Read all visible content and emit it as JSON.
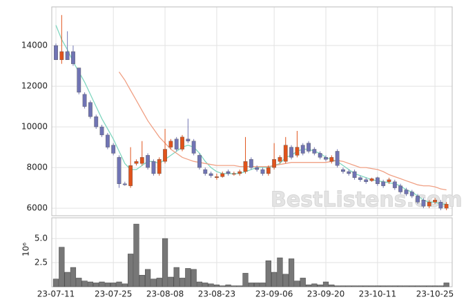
{
  "chart_data": [
    {
      "type": "candlestick",
      "up_color": "#e0531b",
      "down_color": "#7074b4",
      "open": [
        14000,
        13300,
        13700,
        13700,
        12900,
        11600,
        11200,
        10500,
        10000,
        9600,
        9100,
        8500,
        7200,
        7100,
        8200,
        8200,
        8600,
        8300,
        7700,
        8300,
        9000,
        9400,
        8900,
        9400,
        9300,
        8600,
        7900,
        7700,
        7500,
        7550,
        7800,
        7700,
        7700,
        7800,
        8400,
        8000,
        7900,
        7700,
        8000,
        8300,
        8300,
        9000,
        8600,
        9100,
        9200,
        8900,
        8700,
        8500,
        8300,
        8800,
        7900,
        7800,
        7800,
        7500,
        7400,
        7350,
        7500,
        7300,
        7300,
        7300,
        7100,
        6900,
        6800,
        6600,
        6400,
        6100,
        6300,
        6300,
        6000
      ],
      "high": [
        14100,
        15500,
        14700,
        14000,
        12900,
        11700,
        11300,
        10600,
        10100,
        9700,
        9200,
        8600,
        7300,
        9000,
        8400,
        9300,
        8700,
        8400,
        8500,
        9900,
        9400,
        9500,
        9600,
        10400,
        9400,
        8700,
        8000,
        7800,
        7700,
        7800,
        7900,
        7800,
        7900,
        9500,
        8500,
        8100,
        8000,
        8100,
        9200,
        8600,
        9500,
        9100,
        9800,
        9200,
        9300,
        9000,
        8800,
        8600,
        8600,
        8900,
        8000,
        7900,
        7900,
        7600,
        7500,
        7500,
        7550,
        7400,
        7500,
        7400,
        7200,
        7000,
        6900,
        6700,
        6500,
        6400,
        6500,
        6400,
        6300
      ],
      "low": [
        13300,
        13100,
        13300,
        13000,
        11600,
        10900,
        10400,
        9900,
        9500,
        8900,
        8600,
        7000,
        7100,
        7000,
        8100,
        8100,
        7900,
        7600,
        7600,
        8200,
        8900,
        8800,
        8800,
        9200,
        8600,
        7900,
        7600,
        7500,
        7400,
        7500,
        7600,
        7600,
        7600,
        7700,
        7900,
        7800,
        7600,
        7600,
        7900,
        8200,
        8200,
        8400,
        8500,
        8600,
        8700,
        8600,
        8400,
        8300,
        8200,
        8000,
        7700,
        7600,
        7400,
        7300,
        7200,
        7300,
        7100,
        7000,
        7200,
        6900,
        6700,
        6600,
        6500,
        6200,
        6000,
        6000,
        6200,
        5900,
        5900
      ],
      "close": [
        13300,
        13700,
        13300,
        13100,
        11700,
        11000,
        10500,
        10000,
        9600,
        9000,
        8700,
        7200,
        7150,
        8100,
        8300,
        8500,
        8000,
        7700,
        8400,
        8900,
        9300,
        8900,
        9500,
        9300,
        8700,
        8000,
        7700,
        7600,
        7550,
        7700,
        7700,
        7700,
        7800,
        8300,
        8000,
        7900,
        7700,
        8000,
        8400,
        8500,
        9100,
        8500,
        9000,
        8700,
        8800,
        8700,
        8500,
        8400,
        8500,
        8100,
        7800,
        7700,
        7500,
        7400,
        7300,
        7450,
        7200,
        7100,
        7400,
        7000,
        6800,
        6700,
        6600,
        6300,
        6100,
        6300,
        6400,
        6000,
        6200
      ],
      "series": [
        {
          "color": "#7fd6bf",
          "values": [
            15000,
            14300,
            13800,
            13200,
            12700,
            12200,
            11600,
            11000,
            10400,
            9900,
            9400,
            8800,
            8200,
            7900,
            7900,
            8100,
            8300,
            8300,
            8200,
            8400,
            8600,
            8800,
            9000,
            9100,
            9000,
            8700,
            8300,
            8000,
            7800,
            7700,
            7700,
            7700,
            7700,
            7800,
            7900,
            8000,
            8000,
            8000,
            8100,
            8200,
            8500,
            8600,
            8800,
            8900,
            8900,
            8800,
            8700,
            8500,
            8400,
            8300,
            8100,
            7900,
            7700,
            7600,
            7500,
            7400,
            7350,
            7300,
            7250,
            7200,
            7100,
            6900,
            6800,
            6600,
            6400,
            6300,
            6300,
            6200,
            6200
          ]
        },
        {
          "color": "#f0a084",
          "values": [
            null,
            null,
            null,
            null,
            null,
            null,
            null,
            null,
            null,
            null,
            null,
            12700,
            12300,
            11800,
            11300,
            10800,
            10300,
            9900,
            9500,
            9200,
            8900,
            8700,
            8500,
            8400,
            8300,
            8250,
            8200,
            8150,
            8100,
            8100,
            8100,
            8100,
            8050,
            8050,
            8050,
            8050,
            8050,
            8050,
            8100,
            8150,
            8200,
            8250,
            8250,
            8250,
            8250,
            8250,
            8250,
            8250,
            8300,
            8350,
            8300,
            8200,
            8100,
            8000,
            8000,
            7950,
            7900,
            7800,
            7650,
            7550,
            7450,
            7350,
            7250,
            7150,
            7100,
            7100,
            7050,
            6950,
            6900
          ]
        }
      ],
      "ylim": [
        5630,
        15900
      ],
      "yticks": [
        6000,
        8000,
        10000,
        12000,
        14000
      ],
      "grid": true,
      "watermark": "BestListens.com"
    },
    {
      "type": "bar",
      "color": "#777777",
      "y_label": "10⁶",
      "categories": [
        "23-07-11",
        null,
        null,
        null,
        null,
        null,
        null,
        null,
        null,
        null,
        "23-07-25",
        null,
        null,
        null,
        null,
        null,
        null,
        null,
        null,
        "23-08-08",
        null,
        null,
        null,
        null,
        null,
        null,
        null,
        null,
        "23-08-23",
        null,
        null,
        null,
        null,
        null,
        null,
        null,
        null,
        null,
        "23-09-06",
        null,
        null,
        null,
        null,
        null,
        null,
        null,
        null,
        "23-09-20",
        null,
        null,
        null,
        null,
        null,
        null,
        null,
        null,
        "23-10-11",
        null,
        null,
        null,
        null,
        null,
        null,
        null,
        null,
        null,
        "23-10-25",
        null,
        null
      ],
      "values": [
        0.8,
        4.1,
        1.5,
        2.0,
        0.9,
        0.6,
        0.5,
        0.4,
        0.5,
        0.4,
        0.4,
        0.5,
        0.3,
        3.4,
        6.5,
        1.2,
        1.8,
        0.8,
        0.9,
        5.0,
        1.0,
        2.0,
        0.9,
        1.9,
        1.8,
        0.5,
        0.4,
        0.3,
        0.2,
        0.1,
        0.2,
        0.1,
        0.1,
        1.4,
        0.4,
        0.4,
        0.4,
        2.7,
        1.5,
        3.0,
        1.3,
        2.9,
        0.6,
        0.9,
        0.2,
        0.3,
        0.2,
        0.5,
        0.2,
        0.1,
        0.1,
        0.1,
        0.1,
        0.1,
        0.1,
        0.1,
        0.1,
        0.1,
        0.1,
        0.1,
        0.1,
        0.1,
        0.1,
        0.1,
        0.1,
        0.1,
        0.1,
        0.1,
        0.4
      ],
      "ylim": [
        0,
        7.15
      ],
      "yticks": [
        {
          "value": 2.5,
          "label": "2.5"
        },
        {
          "value": 5.0,
          "label": "5.0"
        }
      ],
      "grid": true
    }
  ]
}
